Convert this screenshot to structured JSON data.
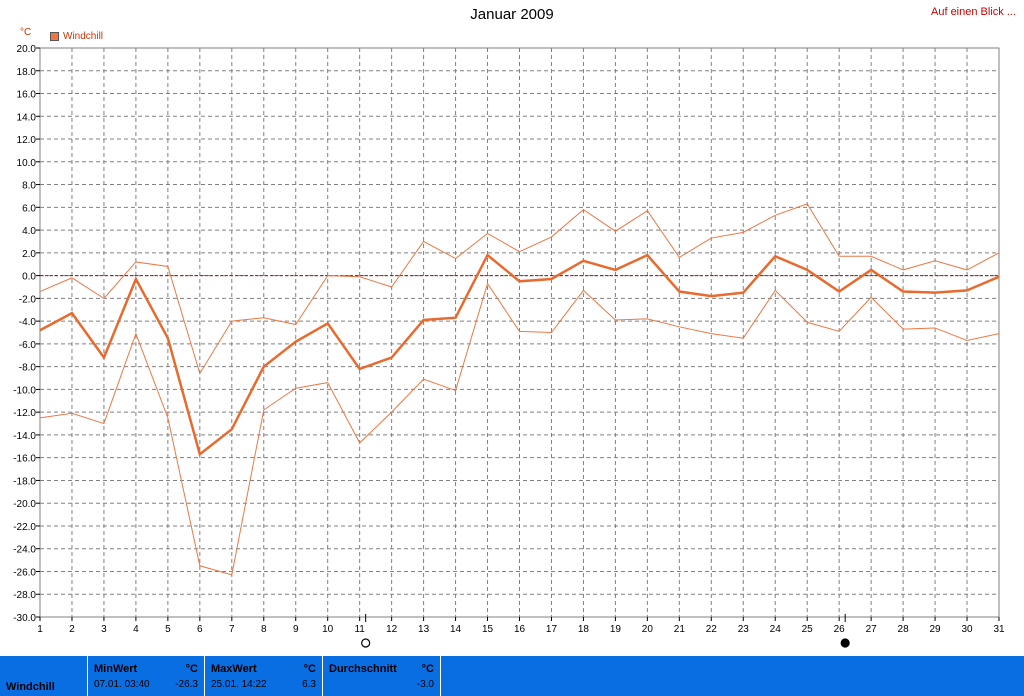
{
  "header": {
    "title": "Januar 2009",
    "link": "Auf einen Blick ..."
  },
  "chart_data": {
    "type": "line",
    "unit": "°C",
    "legend": [
      "Windchill"
    ],
    "x": [
      1,
      2,
      3,
      4,
      5,
      6,
      7,
      8,
      9,
      10,
      11,
      12,
      13,
      14,
      15,
      16,
      17,
      18,
      19,
      20,
      21,
      22,
      23,
      24,
      25,
      26,
      27,
      28,
      29,
      30,
      31
    ],
    "ylim": [
      -30,
      20
    ],
    "ytick_step": 2,
    "grid": true,
    "zero_line": true,
    "series": [
      {
        "name": "Windchill",
        "role": "max",
        "values": [
          -1.4,
          -0.2,
          -2.0,
          1.2,
          0.8,
          -8.6,
          -4.0,
          -3.7,
          -4.3,
          0.0,
          -0.1,
          -1.0,
          3.0,
          1.5,
          3.7,
          2.1,
          3.4,
          5.8,
          3.9,
          5.7,
          1.6,
          3.3,
          3.8,
          5.3,
          6.3,
          1.7,
          1.7,
          0.5,
          1.3,
          0.5,
          2.0
        ]
      },
      {
        "name": "Windchill",
        "role": "avg",
        "values": [
          -4.8,
          -3.3,
          -7.2,
          -0.3,
          -5.5,
          -15.7,
          -13.5,
          -8.0,
          -5.8,
          -4.2,
          -8.2,
          -7.2,
          -3.9,
          -3.7,
          1.8,
          -0.5,
          -0.3,
          1.3,
          0.5,
          1.8,
          -1.4,
          -1.8,
          -1.5,
          1.7,
          0.5,
          -1.4,
          0.5,
          -1.4,
          -1.5,
          -1.3,
          -0.1
        ]
      },
      {
        "name": "Windchill",
        "role": "min",
        "values": [
          -12.5,
          -12.1,
          -13.0,
          -5.1,
          -12.5,
          -25.5,
          -26.3,
          -11.8,
          -9.9,
          -9.4,
          -14.7,
          -12.0,
          -9.1,
          -10.1,
          -0.7,
          -4.9,
          -5.0,
          -1.3,
          -3.9,
          -3.8,
          -4.5,
          -5.1,
          -5.5,
          -1.3,
          -4.1,
          -4.9,
          -1.9,
          -4.7,
          -4.6,
          -5.7,
          -5.1
        ]
      }
    ],
    "markers": [
      {
        "x": 11,
        "style": "open"
      },
      {
        "x": 26,
        "style": "filled"
      }
    ],
    "colors": {
      "thin": "#ee7744",
      "thick": "#e86a2e",
      "zero": "#cc0000",
      "grid": "#808080"
    }
  },
  "stats": {
    "name": "Windchill",
    "min": {
      "label": "MinWert",
      "unit": "°C",
      "datetime": "07.01.  03:40",
      "value": "-26.3"
    },
    "max": {
      "label": "MaxWert",
      "unit": "°C",
      "datetime": "25.01.  14:22",
      "value": "6.3"
    },
    "avg": {
      "label": "Durchschnitt",
      "unit": "°C",
      "value": "-3.0"
    }
  }
}
